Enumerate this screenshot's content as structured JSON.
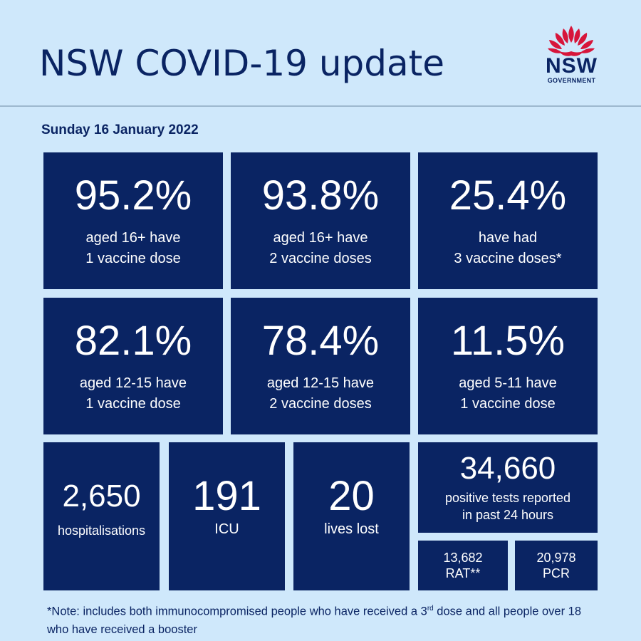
{
  "header": {
    "title": "NSW COVID-19 update",
    "logo_text": "NSW",
    "logo_subtext": "GOVERNMENT"
  },
  "date": "Sunday 16 January 2022",
  "vaccine_stats": [
    {
      "value": "95.2%",
      "line1": "aged 16+ have",
      "line2": "1 vaccine dose"
    },
    {
      "value": "93.8%",
      "line1": "aged 16+ have",
      "line2": "2 vaccine doses"
    },
    {
      "value": "25.4%",
      "line1": "have had",
      "line2": "3 vaccine doses*"
    },
    {
      "value": "82.1%",
      "line1": "aged 12-15 have",
      "line2": "1 vaccine dose"
    },
    {
      "value": "78.4%",
      "line1": "aged 12-15 have",
      "line2": "2 vaccine doses"
    },
    {
      "value": "11.5%",
      "line1": "aged 5-11 have",
      "line2": "1 vaccine dose"
    }
  ],
  "case_stats": {
    "hospitalisations": {
      "value": "2,650",
      "label": "hospitalisations"
    },
    "icu": {
      "value": "191",
      "label": "ICU"
    },
    "deaths": {
      "value": "20",
      "label": "lives lost"
    },
    "positive": {
      "value": "34,660",
      "line1": "positive tests reported",
      "line2": "in past 24 hours"
    },
    "rat": {
      "value": "13,682",
      "label": "RAT**"
    },
    "pcr": {
      "value": "20,978",
      "label": "PCR"
    }
  },
  "note": {
    "part1": "*Note: includes both immunocompromised people who have received a 3",
    "sup": "rd",
    "part2": " dose and all people over 18 who have received a booster"
  },
  "colors": {
    "background": "#cfe8fb",
    "tile": "#0a2463",
    "waratah_red": "#d7153a"
  }
}
